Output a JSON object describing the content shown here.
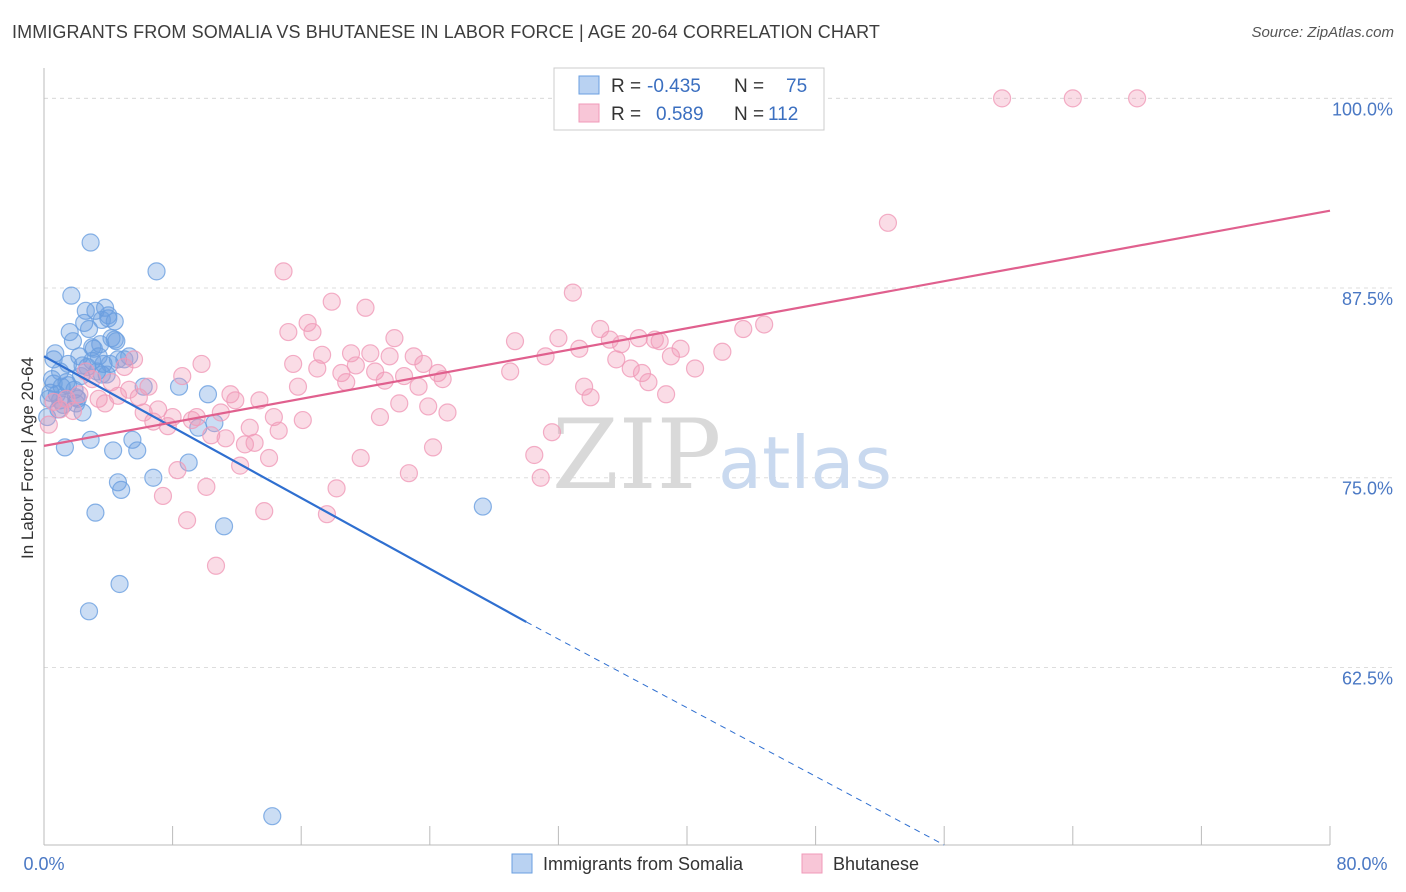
{
  "title": "IMMIGRANTS FROM SOMALIA VS BHUTANESE IN LABOR FORCE | AGE 20-64 CORRELATION CHART",
  "source": "Source: ZipAtlas.com",
  "watermark": {
    "zip": "ZIP",
    "atlas": "atlas"
  },
  "colors": {
    "somalia": "#6a9fe0",
    "somalia_line": "#2f6fd0",
    "bhutanese": "#f09ab8",
    "bhutanese_line": "#e0608e",
    "tick": "#4a78c4"
  },
  "chart_data": {
    "type": "scatter",
    "title": "IMMIGRANTS FROM SOMALIA VS BHUTANESE IN LABOR FORCE | AGE 20-64 CORRELATION CHART",
    "xlabel": "",
    "ylabel": "In Labor Force | Age 20-64",
    "xlim": [
      0,
      80
    ],
    "ylim": [
      50.8,
      102
    ],
    "x_tick_labels": [
      "0.0%",
      "80.0%"
    ],
    "y_ticks": [
      62.5,
      75.0,
      87.5,
      100.0
    ],
    "y_tick_labels": [
      "62.5%",
      "75.0%",
      "87.5%",
      "100.0%"
    ],
    "grid": "horizontal dashed",
    "legend": {
      "placement": "top-center",
      "rows": [
        {
          "r_label": "R =",
          "r_value": "-0.435",
          "n_label": "N =",
          "n_value": "75"
        },
        {
          "r_label": "R =",
          "r_value": "0.589",
          "n_label": "N =",
          "n_value": "112"
        }
      ]
    },
    "series": [
      {
        "name": "Immigrants from Somalia",
        "trend": {
          "x0": 0,
          "y0": 83.0,
          "x1": 30,
          "y1": 65.5,
          "dash_to_x": 56,
          "dash_to_y": 50.8
        },
        "points": [
          [
            0.2,
            79
          ],
          [
            0.4,
            80.6
          ],
          [
            0.5,
            81.5
          ],
          [
            0.6,
            82.8
          ],
          [
            0.7,
            83.2
          ],
          [
            0.8,
            80.5
          ],
          [
            0.9,
            79.5
          ],
          [
            1,
            82
          ],
          [
            1.1,
            81
          ],
          [
            1.2,
            79.8
          ],
          [
            1.3,
            77
          ],
          [
            1.4,
            81.3
          ],
          [
            1.5,
            82.5
          ],
          [
            1.6,
            84.6
          ],
          [
            1.7,
            87
          ],
          [
            1.8,
            84
          ],
          [
            1.9,
            80.8
          ],
          [
            2,
            79.9
          ],
          [
            2.1,
            80.2
          ],
          [
            2.2,
            83
          ],
          [
            2.3,
            81.7
          ],
          [
            2.4,
            79.3
          ],
          [
            2.5,
            85.2
          ],
          [
            2.6,
            86
          ],
          [
            2.7,
            82.3
          ],
          [
            2.8,
            84.8
          ],
          [
            2.9,
            77.5
          ],
          [
            3,
            82.7
          ],
          [
            3.1,
            83.5
          ],
          [
            3.2,
            86
          ],
          [
            3.3,
            82
          ],
          [
            3.4,
            83
          ],
          [
            3.5,
            83.8
          ],
          [
            3.6,
            81.8
          ],
          [
            3.7,
            82.5
          ],
          [
            3.8,
            86.2
          ],
          [
            3.9,
            81.8
          ],
          [
            4,
            85.5
          ],
          [
            4.1,
            82.5
          ],
          [
            4.2,
            84.2
          ],
          [
            4.3,
            76.8
          ],
          [
            4.4,
            85.3
          ],
          [
            4.5,
            84
          ],
          [
            4.6,
            82.8
          ],
          [
            2.9,
            90.5
          ],
          [
            3.2,
            72.7
          ],
          [
            4.6,
            74.7
          ],
          [
            4.8,
            74.2
          ],
          [
            4.7,
            68
          ],
          [
            2.8,
            66.2
          ],
          [
            5.0,
            82.8
          ],
          [
            5.3,
            83
          ],
          [
            5.5,
            77.5
          ],
          [
            5.8,
            76.8
          ],
          [
            6.2,
            81
          ],
          [
            6.8,
            75
          ],
          [
            7,
            88.6
          ],
          [
            8.4,
            81
          ],
          [
            9,
            76
          ],
          [
            9.6,
            78.3
          ],
          [
            10.2,
            80.5
          ],
          [
            10.6,
            78.6
          ],
          [
            11.2,
            71.8
          ],
          [
            14.2,
            52.7
          ],
          [
            27.3,
            73.1
          ],
          [
            0.3,
            80.2
          ],
          [
            0.6,
            81.2
          ],
          [
            1.0,
            80.1
          ],
          [
            1.5,
            81.1
          ],
          [
            2.0,
            80.3
          ],
          [
            2.4,
            82.4
          ],
          [
            3.0,
            83.6
          ],
          [
            3.6,
            85.4
          ],
          [
            4.0,
            85.7
          ],
          [
            4.4,
            84.1
          ]
        ]
      },
      {
        "name": "Bhutanese",
        "trend": {
          "x0": 0,
          "y0": 77.1,
          "x1": 80,
          "y1": 92.6
        },
        "points": [
          [
            0.3,
            78.5
          ],
          [
            0.6,
            80
          ],
          [
            1,
            79.5
          ],
          [
            1.4,
            80.2
          ],
          [
            1.8,
            79.4
          ],
          [
            2.2,
            80.5
          ],
          [
            2.6,
            82
          ],
          [
            3,
            81.5
          ],
          [
            3.4,
            80.2
          ],
          [
            3.8,
            79.9
          ],
          [
            4.2,
            81.3
          ],
          [
            4.6,
            80.4
          ],
          [
            5,
            82.3
          ],
          [
            5.3,
            80.8
          ],
          [
            5.6,
            82.8
          ],
          [
            5.9,
            80.3
          ],
          [
            6.2,
            79.3
          ],
          [
            6.5,
            81
          ],
          [
            6.8,
            78.7
          ],
          [
            7.1,
            79.5
          ],
          [
            7.4,
            73.8
          ],
          [
            7.7,
            78.4
          ],
          [
            8,
            79
          ],
          [
            8.3,
            75.5
          ],
          [
            8.6,
            81.7
          ],
          [
            8.9,
            72.2
          ],
          [
            9.2,
            78.8
          ],
          [
            9.5,
            79
          ],
          [
            9.8,
            82.5
          ],
          [
            10.1,
            74.4
          ],
          [
            10.4,
            77.8
          ],
          [
            10.7,
            69.2
          ],
          [
            11,
            79.3
          ],
          [
            11.3,
            77.6
          ],
          [
            11.6,
            80.5
          ],
          [
            11.9,
            80.1
          ],
          [
            12.2,
            75.8
          ],
          [
            12.5,
            77.2
          ],
          [
            12.8,
            78.3
          ],
          [
            13.1,
            77.3
          ],
          [
            13.4,
            80.1
          ],
          [
            13.7,
            72.8
          ],
          [
            14,
            76.3
          ],
          [
            14.3,
            79
          ],
          [
            14.6,
            78.1
          ],
          [
            14.9,
            88.6
          ],
          [
            15.2,
            84.6
          ],
          [
            15.5,
            82.5
          ],
          [
            15.8,
            81
          ],
          [
            16.1,
            78.8
          ],
          [
            16.4,
            85.2
          ],
          [
            16.7,
            84.6
          ],
          [
            17,
            82.2
          ],
          [
            17.3,
            83.1
          ],
          [
            17.6,
            72.6
          ],
          [
            17.9,
            86.6
          ],
          [
            18.2,
            74.3
          ],
          [
            18.5,
            81.9
          ],
          [
            18.8,
            81.3
          ],
          [
            19.1,
            83.2
          ],
          [
            19.4,
            82.4
          ],
          [
            19.7,
            76.3
          ],
          [
            20,
            86.2
          ],
          [
            20.3,
            83.2
          ],
          [
            20.6,
            82
          ],
          [
            20.9,
            79
          ],
          [
            21.2,
            81.4
          ],
          [
            21.5,
            83
          ],
          [
            21.8,
            84.2
          ],
          [
            22.1,
            79.9
          ],
          [
            22.4,
            81.7
          ],
          [
            22.7,
            75.3
          ],
          [
            23,
            83
          ],
          [
            23.3,
            81
          ],
          [
            23.6,
            82.5
          ],
          [
            23.9,
            79.7
          ],
          [
            24.2,
            77
          ],
          [
            24.5,
            81.9
          ],
          [
            24.8,
            81.5
          ],
          [
            25.1,
            79.3
          ],
          [
            29,
            82
          ],
          [
            29.3,
            84
          ],
          [
            30.5,
            76.5
          ],
          [
            30.9,
            75
          ],
          [
            31.2,
            83
          ],
          [
            31.6,
            78
          ],
          [
            32,
            84.2
          ],
          [
            32.9,
            87.2
          ],
          [
            33.3,
            83.5
          ],
          [
            33.6,
            81
          ],
          [
            34,
            80.3
          ],
          [
            34.6,
            84.8
          ],
          [
            35.2,
            84.1
          ],
          [
            35.6,
            82.8
          ],
          [
            35.9,
            83.8
          ],
          [
            36.5,
            82.2
          ],
          [
            37,
            84.2
          ],
          [
            37.2,
            81.9
          ],
          [
            37.6,
            81.3
          ],
          [
            38,
            84.1
          ],
          [
            38.3,
            84
          ],
          [
            38.7,
            80.5
          ],
          [
            39,
            83
          ],
          [
            39.6,
            83.5
          ],
          [
            40.5,
            82.2
          ],
          [
            42.2,
            83.3
          ],
          [
            43.5,
            84.8
          ],
          [
            44.8,
            85.1
          ],
          [
            52.5,
            91.8
          ],
          [
            59.6,
            100
          ],
          [
            64,
            100
          ],
          [
            68,
            100
          ]
        ]
      }
    ]
  },
  "bottom_legend": {
    "somalia_label": "Immigrants from Somalia",
    "bhutanese_label": "Bhutanese"
  }
}
